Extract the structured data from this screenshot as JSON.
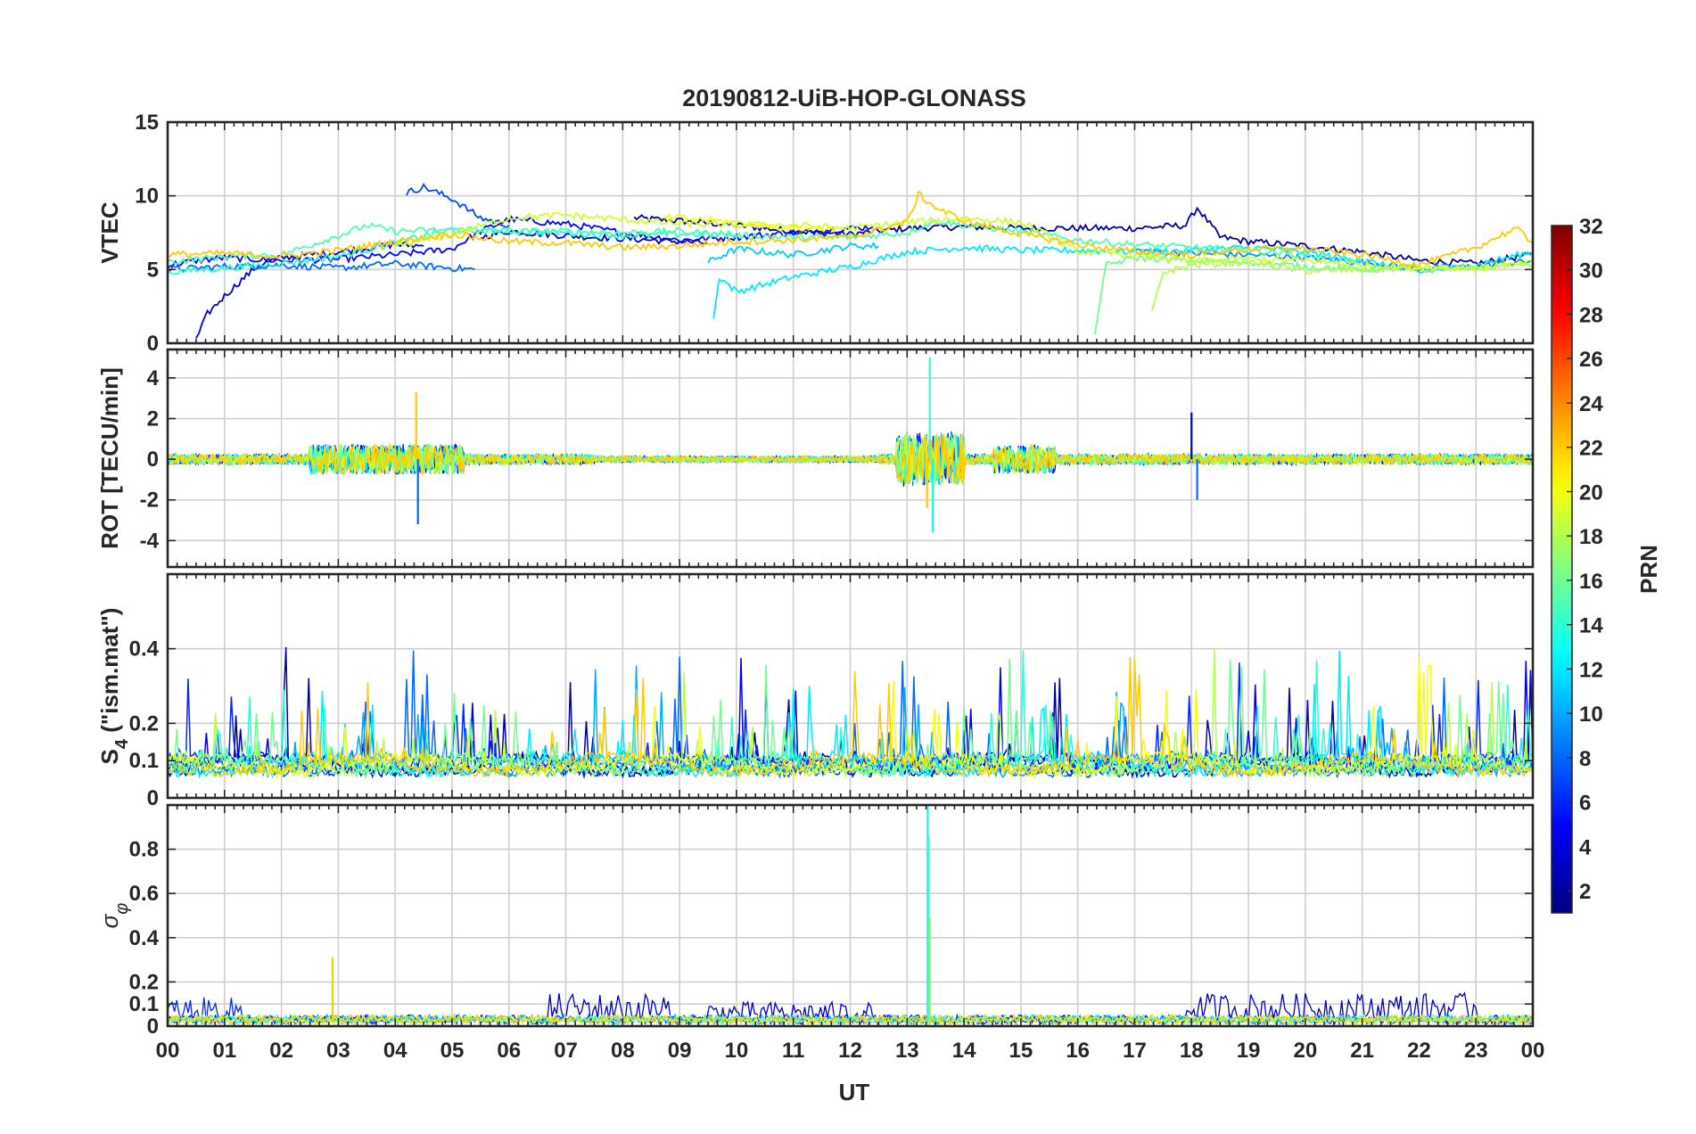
{
  "chart_data": {
    "type": "line",
    "title": "20190812-UiB-HOP-GLONASS",
    "xlabel": "UT",
    "x_ticks": [
      "00",
      "01",
      "02",
      "03",
      "04",
      "05",
      "06",
      "07",
      "08",
      "09",
      "10",
      "11",
      "12",
      "13",
      "14",
      "15",
      "16",
      "17",
      "18",
      "19",
      "20",
      "21",
      "22",
      "23",
      "00"
    ],
    "xlim": [
      0,
      24
    ],
    "panels": [
      {
        "id": "vtec",
        "ylabel": "VTEC",
        "ylim": [
          0,
          15
        ],
        "y_ticks": [
          0,
          5,
          10,
          15
        ],
        "y_tick_labels": [
          "0",
          "5",
          "10",
          "15"
        ],
        "series": [
          {
            "prn": 2,
            "x": [
              8.2,
              9,
              10,
              11,
              12,
              13,
              14,
              15,
              16,
              17,
              17.9,
              18.1,
              18.5,
              19,
              20,
              21,
              22,
              23,
              24
            ],
            "y": [
              8.5,
              8.3,
              8.0,
              7.6,
              7.4,
              7.8,
              7.9,
              7.8,
              7.8,
              7.8,
              8.0,
              9.2,
              7.2,
              6.9,
              6.6,
              6.2,
              5.6,
              5.4,
              6.0
            ]
          },
          {
            "prn": 3,
            "x": [
              5.5,
              6,
              7,
              8,
              9,
              9.5
            ],
            "y": [
              7.2,
              7.6,
              7.3,
              7.1,
              6.9,
              6.8
            ]
          },
          {
            "prn": 4,
            "x": [
              0.5,
              0.7,
              1.0,
              1.3,
              1.6,
              2.0,
              3,
              4,
              4.5
            ],
            "y": [
              0.2,
              2.0,
              3.2,
              4.3,
              5.3,
              5.8,
              6.2,
              6.7,
              6.6
            ]
          },
          {
            "prn": 5,
            "x": [
              0,
              0.5,
              1,
              2,
              3,
              4,
              5,
              5.5,
              6,
              7,
              8,
              9,
              10,
              11,
              12,
              12.4
            ],
            "y": [
              5.3,
              5.6,
              5.8,
              5.6,
              5.7,
              6.0,
              6.4,
              7.6,
              8.4,
              8.1,
              7.5,
              7.0,
              7.2,
              7.5,
              7.8,
              7.9
            ]
          },
          {
            "prn": 7,
            "x": [
              4.2,
              4.5,
              5.0,
              5.5,
              6.0
            ],
            "y": [
              10.2,
              10.6,
              9.8,
              8.5,
              8.0
            ]
          },
          {
            "prn": 8,
            "x": [
              0,
              1,
              2,
              3,
              4,
              5,
              5.4
            ],
            "y": [
              5.0,
              5.2,
              5.3,
              5.1,
              5.4,
              5.1,
              5.0
            ]
          },
          {
            "prn": 9,
            "x": [
              17,
              18,
              19,
              20,
              21,
              22,
              23,
              24
            ],
            "y": [
              6.3,
              6.1,
              6.0,
              5.8,
              5.5,
              5.1,
              5.2,
              5.6
            ]
          },
          {
            "prn": 11,
            "x": [
              9.5,
              10,
              11,
              12,
              12.5
            ],
            "y": [
              5.5,
              6.4,
              6.0,
              6.6,
              6.6
            ]
          },
          {
            "prn": 12,
            "x": [
              9.6,
              9.7,
              10,
              11,
              12,
              13,
              14,
              15,
              16,
              17,
              18,
              19,
              20,
              21,
              22,
              23,
              24
            ],
            "y": [
              1.8,
              4.5,
              3.5,
              4.5,
              5.2,
              6.2,
              6.5,
              6.3,
              6.3,
              6.2,
              6.3,
              6.5,
              6.2,
              5.6,
              4.8,
              5.3,
              6.2
            ]
          },
          {
            "prn": 14,
            "x": [
              0,
              1,
              2,
              3,
              4,
              4.5,
              5,
              6,
              7,
              8,
              9,
              10
            ],
            "y": [
              4.8,
              5.1,
              5.4,
              5.9,
              6.8,
              7.3,
              7.7,
              7.6,
              7.5,
              7.3,
              7.4,
              7.4
            ]
          },
          {
            "prn": 15,
            "x": [
              0,
              1,
              2,
              3,
              3.5,
              4,
              5,
              6,
              7,
              8,
              9,
              10,
              11,
              12,
              13,
              13.5,
              14,
              15,
              16,
              17,
              18,
              19,
              20,
              21
            ],
            "y": [
              5.5,
              5.9,
              6.0,
              7.3,
              8.0,
              7.6,
              7.7,
              7.6,
              7.6,
              7.5,
              7.6,
              7.3,
              7.2,
              7.2,
              7.5,
              8.3,
              8.0,
              7.6,
              7.0,
              6.7,
              6.5,
              6.3,
              6.0,
              5.5
            ]
          },
          {
            "prn": 16,
            "x": [
              16.3,
              16.5,
              17,
              18,
              19,
              20,
              21,
              22
            ],
            "y": [
              0.8,
              5.3,
              5.8,
              5.6,
              5.5,
              5.2,
              5.0,
              5.1
            ]
          },
          {
            "prn": 18,
            "x": [
              17.3,
              17.5,
              18,
              19,
              20,
              21,
              22,
              23,
              24
            ],
            "y": [
              2.0,
              4.8,
              5.3,
              5.5,
              4.9,
              5.0,
              5.1,
              5.1,
              5.3
            ]
          },
          {
            "prn": 19,
            "x": [
              4,
              5,
              6,
              7,
              8,
              9,
              10,
              11,
              12,
              13,
              14,
              15,
              15.5,
              16,
              17,
              18,
              19,
              20,
              21,
              22,
              23,
              24
            ],
            "y": [
              6.6,
              7.4,
              8.5,
              8.7,
              8.4,
              8.1,
              8.0,
              8.0,
              7.8,
              8.2,
              8.5,
              8.2,
              7.3,
              6.2,
              6.0,
              5.6,
              5.7,
              5.6,
              5.3,
              5.1,
              5.1,
              5.5
            ]
          },
          {
            "prn": 20,
            "x": [
              8.7,
              9,
              10,
              11,
              11.8
            ],
            "y": [
              8.5,
              8.5,
              8.2,
              7.8,
              7.8
            ]
          },
          {
            "prn": 22,
            "x": [
              0,
              1,
              2,
              3,
              4,
              5,
              6,
              7,
              8,
              9,
              10,
              11,
              12,
              13,
              13.2,
              13.5,
              14,
              15,
              16,
              17,
              18,
              19,
              20,
              21,
              22,
              23,
              23.7,
              24
            ],
            "y": [
              6.0,
              6.1,
              5.9,
              6.3,
              6.9,
              7.4,
              6.9,
              6.8,
              6.5,
              6.6,
              6.9,
              7.0,
              7.2,
              8.2,
              10.1,
              9.2,
              8.3,
              7.4,
              6.7,
              6.2,
              6.0,
              6.4,
              6.4,
              6.0,
              5.3,
              6.5,
              7.8,
              6.8
            ]
          }
        ]
      },
      {
        "id": "rot",
        "ylabel": "ROT [TECU/min]",
        "ylim": [
          -5.3,
          5.4
        ],
        "y_ticks": [
          -4,
          -2,
          0,
          2,
          4
        ],
        "y_tick_labels": [
          "-4",
          "-2",
          "0",
          "2",
          "4"
        ],
        "spikes": [
          {
            "prn": 22,
            "x": 4.37,
            "y": 3.3
          },
          {
            "prn": 8,
            "x": 4.4,
            "y": -3.2
          },
          {
            "prn": 14,
            "x": 13.4,
            "y": 5.0
          },
          {
            "prn": 13,
            "x": 13.45,
            "y": -3.6
          },
          {
            "prn": 22,
            "x": 13.35,
            "y": -2.4
          },
          {
            "prn": 3,
            "x": 18.0,
            "y": 2.3
          },
          {
            "prn": 8,
            "x": 18.1,
            "y": -2.0
          }
        ]
      },
      {
        "id": "s4",
        "ylabel": "S4 (\"ism.mat\")",
        "ylabel_main": "S",
        "ylabel_sub": "4",
        "ylabel_rest": " (\"ism.mat\")",
        "ylim": [
          0,
          0.6
        ],
        "y_ticks": [
          0,
          0.1,
          0.2,
          0.4
        ],
        "y_tick_labels": [
          "0",
          "0.1",
          "0.2",
          "0.4"
        ]
      },
      {
        "id": "sigma",
        "ylabel": "σφ",
        "ylabel_main": "σ",
        "ylabel_sub": "φ",
        "ylim": [
          0,
          1.0
        ],
        "y_ticks": [
          0,
          0.1,
          0.2,
          0.4,
          0.6,
          0.8
        ],
        "y_tick_labels": [
          "0",
          "0.1",
          "0.2",
          "0.4",
          "0.6",
          "0.8"
        ],
        "spikes": [
          {
            "prn": 22,
            "x": 2.9,
            "y": 0.31
          },
          {
            "prn": 22,
            "x": 13.4,
            "y": 0.49
          },
          {
            "prn": 16,
            "x": 13.38,
            "y": 0.86
          },
          {
            "prn": 13,
            "x": 13.36,
            "y": 1.0
          }
        ]
      }
    ],
    "colorbar": {
      "label": "PRN",
      "range": [
        1,
        32
      ],
      "ticks": [
        2,
        4,
        6,
        8,
        10,
        12,
        14,
        16,
        18,
        20,
        22,
        24,
        26,
        28,
        30,
        32
      ],
      "tick_labels": [
        "2",
        "4",
        "6",
        "8",
        "10",
        "12",
        "14",
        "16",
        "18",
        "20",
        "22",
        "24",
        "26",
        "28",
        "30",
        "32"
      ]
    }
  }
}
